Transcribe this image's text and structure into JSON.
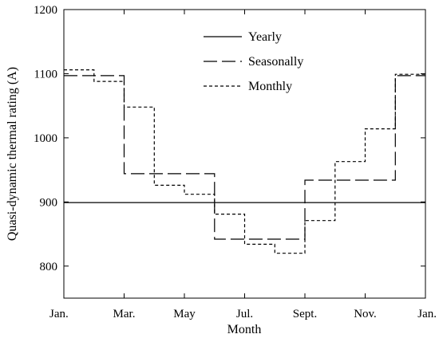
{
  "chart_data": {
    "type": "line",
    "title": "",
    "xlabel": "Month",
    "ylabel": "Quasi-dynamic thermal rating (A)",
    "x_unit": "month",
    "xlim": [
      1,
      13
    ],
    "ylim": [
      750,
      1200
    ],
    "xticks": [
      {
        "value": 1,
        "label": "Jan."
      },
      {
        "value": 3,
        "label": "Mar."
      },
      {
        "value": 5,
        "label": "May"
      },
      {
        "value": 7,
        "label": "Jul."
      },
      {
        "value": 9,
        "label": "Sept."
      },
      {
        "value": 11,
        "label": "Nov."
      },
      {
        "value": 13,
        "label": "Jan."
      }
    ],
    "yticks": [
      800,
      900,
      1000,
      1100,
      1200
    ],
    "grid": false,
    "legend_position": "top-center",
    "series": [
      {
        "name": "Yearly",
        "style": "solid",
        "step": [
          {
            "x0": 1,
            "x1": 13,
            "y": 899
          }
        ]
      },
      {
        "name": "Seasonally",
        "style": "long-dash",
        "step": [
          {
            "x0": 1,
            "x1": 3,
            "y": 1097
          },
          {
            "x0": 3,
            "x1": 6,
            "y": 944
          },
          {
            "x0": 6,
            "x1": 9,
            "y": 842
          },
          {
            "x0": 9,
            "x1": 12,
            "y": 934
          },
          {
            "x0": 12,
            "x1": 13,
            "y": 1097
          }
        ]
      },
      {
        "name": "Monthly",
        "style": "short-dash",
        "step": [
          {
            "x0": 1,
            "x1": 2,
            "y": 1106
          },
          {
            "x0": 2,
            "x1": 3,
            "y": 1088
          },
          {
            "x0": 3,
            "x1": 4,
            "y": 1048
          },
          {
            "x0": 4,
            "x1": 5,
            "y": 926
          },
          {
            "x0": 5,
            "x1": 6,
            "y": 912
          },
          {
            "x0": 6,
            "x1": 7,
            "y": 881
          },
          {
            "x0": 7,
            "x1": 8,
            "y": 834
          },
          {
            "x0": 8,
            "x1": 9,
            "y": 820
          },
          {
            "x0": 9,
            "x1": 10,
            "y": 871
          },
          {
            "x0": 10,
            "x1": 11,
            "y": 963
          },
          {
            "x0": 11,
            "x1": 12,
            "y": 1014
          },
          {
            "x0": 12,
            "x1": 13,
            "y": 1099
          }
        ]
      }
    ]
  }
}
